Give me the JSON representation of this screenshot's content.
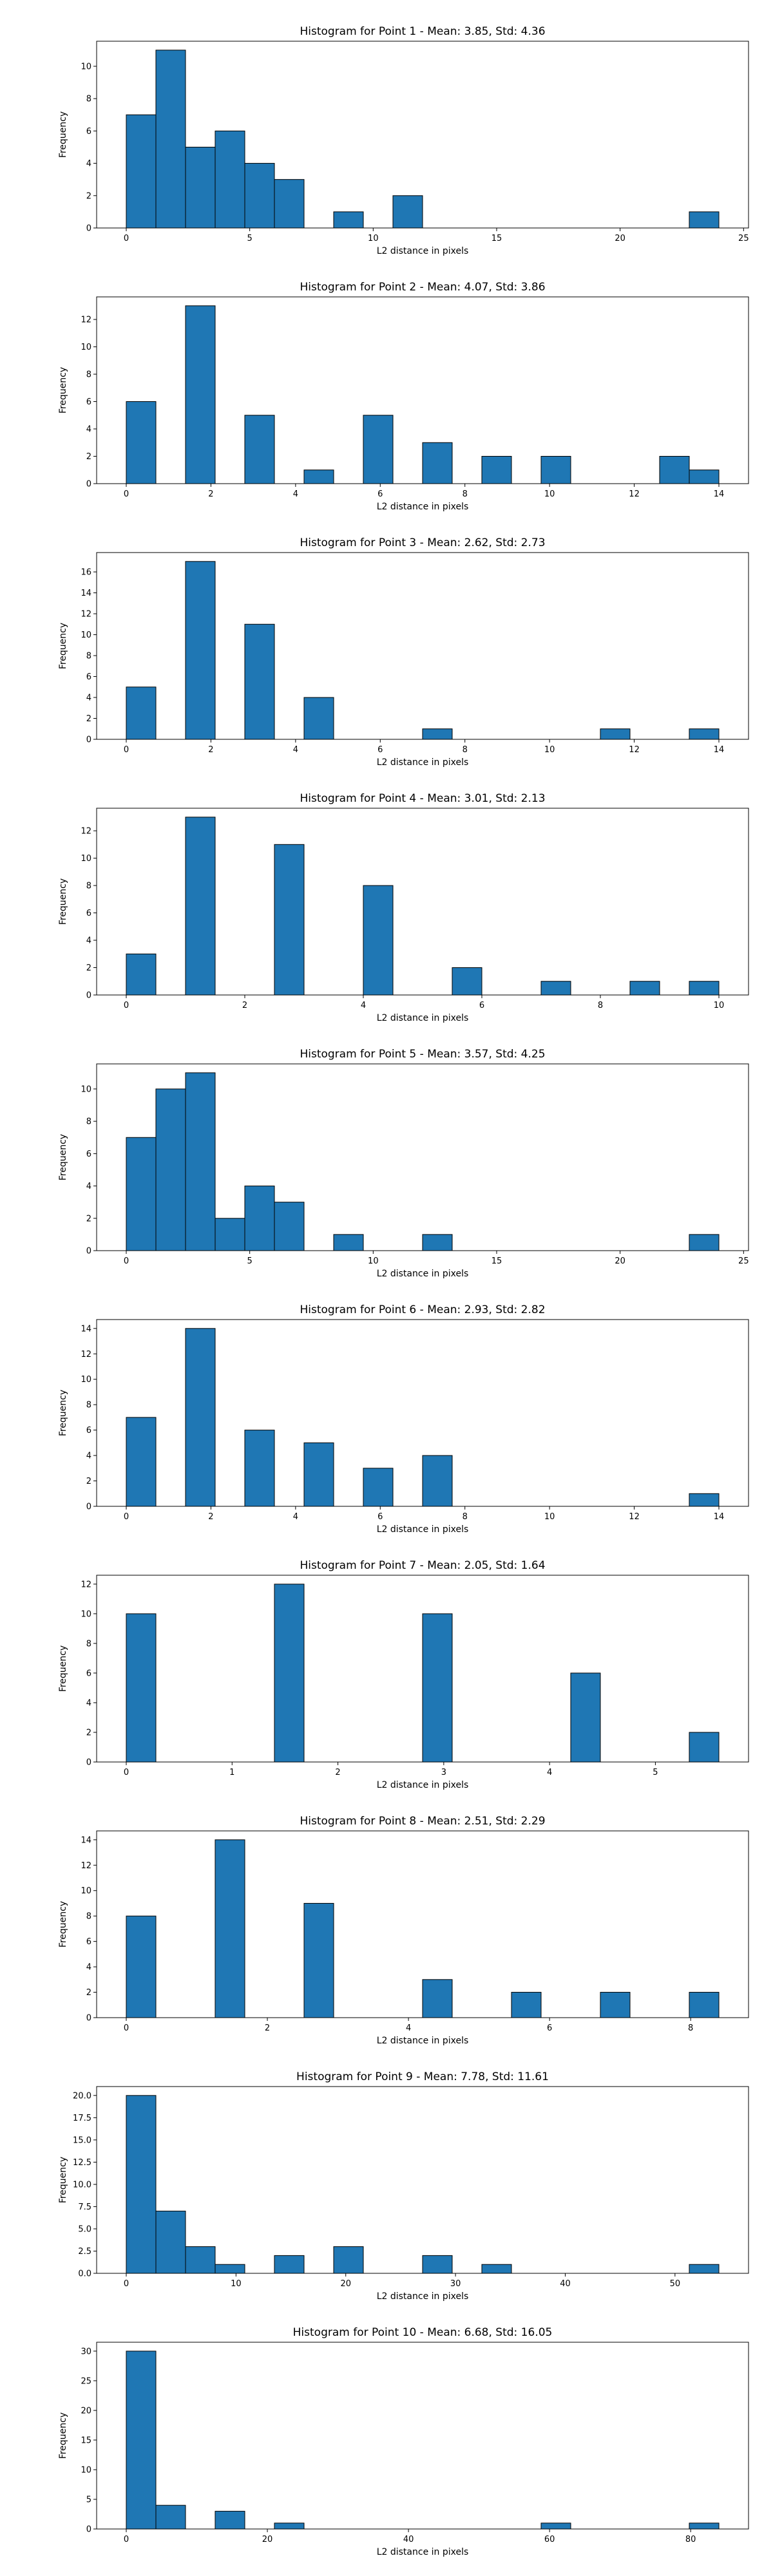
{
  "chart_data": [
    {
      "type": "bar",
      "title": "Histogram for Point 1 - Mean: 3.85, Std: 4.36",
      "xlabel": "L2 distance in pixels",
      "ylabel": "Frequency",
      "xlim": [
        -1.2,
        25.2
      ],
      "ylim": [
        0,
        11.55
      ],
      "xticks": [
        0,
        5,
        10,
        15,
        20,
        25
      ],
      "yticks": [
        0,
        2,
        4,
        6,
        8,
        10
      ],
      "bin_width": 1.2,
      "bars": [
        {
          "x": 0,
          "value": 7
        },
        {
          "x": 1.2,
          "value": 11
        },
        {
          "x": 2.4,
          "value": 5
        },
        {
          "x": 3.6,
          "value": 6
        },
        {
          "x": 4.8,
          "value": 4
        },
        {
          "x": 6.0,
          "value": 3
        },
        {
          "x": 8.4,
          "value": 1
        },
        {
          "x": 10.8,
          "value": 2
        },
        {
          "x": 22.8,
          "value": 1
        }
      ]
    },
    {
      "type": "bar",
      "title": "Histogram for Point 2 - Mean: 4.07, Std: 3.86",
      "xlabel": "L2 distance in pixels",
      "ylabel": "Frequency",
      "xlim": [
        -0.7,
        14.7
      ],
      "ylim": [
        0,
        13.65
      ],
      "xticks": [
        0,
        2,
        4,
        6,
        8,
        10,
        12,
        14
      ],
      "yticks": [
        0,
        2,
        4,
        6,
        8,
        10,
        12
      ],
      "bin_width": 0.7,
      "bars": [
        {
          "x": 0,
          "value": 6
        },
        {
          "x": 1.4,
          "value": 13
        },
        {
          "x": 2.8,
          "value": 5
        },
        {
          "x": 4.2,
          "value": 1
        },
        {
          "x": 5.6,
          "value": 5
        },
        {
          "x": 7.0,
          "value": 3
        },
        {
          "x": 8.4,
          "value": 2
        },
        {
          "x": 9.8,
          "value": 2
        },
        {
          "x": 12.6,
          "value": 2
        },
        {
          "x": 13.3,
          "value": 1
        }
      ]
    },
    {
      "type": "bar",
      "title": "Histogram for Point 3 - Mean: 2.62, Std: 2.73",
      "xlabel": "L2 distance in pixels",
      "ylabel": "Frequency",
      "xlim": [
        -0.7,
        14.7
      ],
      "ylim": [
        0,
        17.85
      ],
      "xticks": [
        0,
        2,
        4,
        6,
        8,
        10,
        12,
        14
      ],
      "yticks": [
        0,
        2,
        4,
        6,
        8,
        10,
        12,
        14,
        16
      ],
      "bin_width": 0.7,
      "bars": [
        {
          "x": 0,
          "value": 5
        },
        {
          "x": 1.4,
          "value": 17
        },
        {
          "x": 2.8,
          "value": 11
        },
        {
          "x": 4.2,
          "value": 4
        },
        {
          "x": 7.0,
          "value": 1
        },
        {
          "x": 11.2,
          "value": 1
        },
        {
          "x": 13.3,
          "value": 1
        }
      ]
    },
    {
      "type": "bar",
      "title": "Histogram for Point 4 - Mean: 3.01, Std: 2.13",
      "xlabel": "L2 distance in pixels",
      "ylabel": "Frequency",
      "xlim": [
        -0.5,
        10.5
      ],
      "ylim": [
        0,
        13.65
      ],
      "xticks": [
        0,
        2,
        4,
        6,
        8,
        10
      ],
      "yticks": [
        0,
        2,
        4,
        6,
        8,
        10,
        12
      ],
      "bin_width": 0.5,
      "bars": [
        {
          "x": 0,
          "value": 3
        },
        {
          "x": 1.0,
          "value": 13
        },
        {
          "x": 2.5,
          "value": 11
        },
        {
          "x": 4.0,
          "value": 8
        },
        {
          "x": 5.5,
          "value": 2
        },
        {
          "x": 7.0,
          "value": 1
        },
        {
          "x": 8.5,
          "value": 1
        },
        {
          "x": 9.5,
          "value": 1
        }
      ]
    },
    {
      "type": "bar",
      "title": "Histogram for Point 5 - Mean: 3.57, Std: 4.25",
      "xlabel": "L2 distance in pixels",
      "ylabel": "Frequency",
      "xlim": [
        -1.2,
        25.2
      ],
      "ylim": [
        0,
        11.55
      ],
      "xticks": [
        0,
        5,
        10,
        15,
        20,
        25
      ],
      "yticks": [
        0,
        2,
        4,
        6,
        8,
        10
      ],
      "bin_width": 1.2,
      "bars": [
        {
          "x": 0,
          "value": 7
        },
        {
          "x": 1.2,
          "value": 10
        },
        {
          "x": 2.4,
          "value": 11
        },
        {
          "x": 3.6,
          "value": 2
        },
        {
          "x": 4.8,
          "value": 4
        },
        {
          "x": 6.0,
          "value": 3
        },
        {
          "x": 8.4,
          "value": 1
        },
        {
          "x": 12.0,
          "value": 1
        },
        {
          "x": 22.8,
          "value": 1
        }
      ]
    },
    {
      "type": "bar",
      "title": "Histogram for Point 6 - Mean: 2.93, Std: 2.82",
      "xlabel": "L2 distance in pixels",
      "ylabel": "Frequency",
      "xlim": [
        -0.7,
        14.7
      ],
      "ylim": [
        0,
        14.7
      ],
      "xticks": [
        0,
        2,
        4,
        6,
        8,
        10,
        12,
        14
      ],
      "yticks": [
        0,
        2,
        4,
        6,
        8,
        10,
        12,
        14
      ],
      "bin_width": 0.7,
      "bars": [
        {
          "x": 0,
          "value": 7
        },
        {
          "x": 1.4,
          "value": 14
        },
        {
          "x": 2.8,
          "value": 6
        },
        {
          "x": 4.2,
          "value": 5
        },
        {
          "x": 5.6,
          "value": 3
        },
        {
          "x": 7.0,
          "value": 4
        },
        {
          "x": 13.3,
          "value": 1
        }
      ]
    },
    {
      "type": "bar",
      "title": "Histogram for Point 7 - Mean: 2.05, Std: 1.64",
      "xlabel": "L2 distance in pixels",
      "ylabel": "Frequency",
      "xlim": [
        -0.28,
        5.88
      ],
      "ylim": [
        0,
        12.6
      ],
      "xticks": [
        0,
        1,
        2,
        3,
        4,
        5
      ],
      "yticks": [
        0,
        2,
        4,
        6,
        8,
        10,
        12
      ],
      "bin_width": 0.28,
      "bars": [
        {
          "x": 0,
          "value": 10
        },
        {
          "x": 1.4,
          "value": 12
        },
        {
          "x": 2.8,
          "value": 10
        },
        {
          "x": 4.2,
          "value": 6
        },
        {
          "x": 5.32,
          "value": 2
        }
      ]
    },
    {
      "type": "bar",
      "title": "Histogram for Point 8 - Mean: 2.51, Std: 2.29",
      "xlabel": "L2 distance in pixels",
      "ylabel": "Frequency",
      "xlim": [
        -0.42,
        8.82
      ],
      "ylim": [
        0,
        14.7
      ],
      "xticks": [
        0,
        2,
        4,
        6,
        8
      ],
      "yticks": [
        0,
        2,
        4,
        6,
        8,
        10,
        12,
        14
      ],
      "bin_width": 0.42,
      "bars": [
        {
          "x": 0,
          "value": 8
        },
        {
          "x": 1.26,
          "value": 14
        },
        {
          "x": 2.52,
          "value": 9
        },
        {
          "x": 4.2,
          "value": 3
        },
        {
          "x": 5.46,
          "value": 2
        },
        {
          "x": 6.72,
          "value": 2
        },
        {
          "x": 7.98,
          "value": 2
        }
      ]
    },
    {
      "type": "bar",
      "title": "Histogram for Point 9 - Mean: 7.78, Std: 11.61",
      "xlabel": "L2 distance in pixels",
      "ylabel": "Frequency",
      "xlim": [
        -2.7,
        56.7
      ],
      "ylim": [
        0,
        21
      ],
      "xticks": [
        0,
        10,
        20,
        30,
        40,
        50
      ],
      "yticks": [
        0.0,
        2.5,
        5.0,
        7.5,
        10.0,
        12.5,
        15.0,
        17.5,
        20.0
      ],
      "ytick_labels": [
        "0.0",
        "2.5",
        "5.0",
        "7.5",
        "10.0",
        "12.5",
        "15.0",
        "17.5",
        "20.0"
      ],
      "bin_width": 2.7,
      "bars": [
        {
          "x": 0,
          "value": 20
        },
        {
          "x": 2.7,
          "value": 7
        },
        {
          "x": 5.4,
          "value": 3
        },
        {
          "x": 8.1,
          "value": 1
        },
        {
          "x": 13.5,
          "value": 2
        },
        {
          "x": 18.9,
          "value": 3
        },
        {
          "x": 27.0,
          "value": 2
        },
        {
          "x": 32.4,
          "value": 1
        },
        {
          "x": 51.3,
          "value": 1
        }
      ]
    },
    {
      "type": "bar",
      "title": "Histogram for Point 10 - Mean: 6.68, Std: 16.05",
      "xlabel": "L2 distance in pixels",
      "ylabel": "Frequency",
      "xlim": [
        -4.2,
        88.2
      ],
      "ylim": [
        0,
        31.5
      ],
      "xticks": [
        0,
        20,
        40,
        60,
        80
      ],
      "yticks": [
        0,
        5,
        10,
        15,
        20,
        25,
        30
      ],
      "bin_width": 4.2,
      "bars": [
        {
          "x": 0,
          "value": 30
        },
        {
          "x": 4.2,
          "value": 4
        },
        {
          "x": 12.6,
          "value": 3
        },
        {
          "x": 21.0,
          "value": 1
        },
        {
          "x": 58.8,
          "value": 1
        },
        {
          "x": 79.8,
          "value": 1
        }
      ]
    }
  ]
}
